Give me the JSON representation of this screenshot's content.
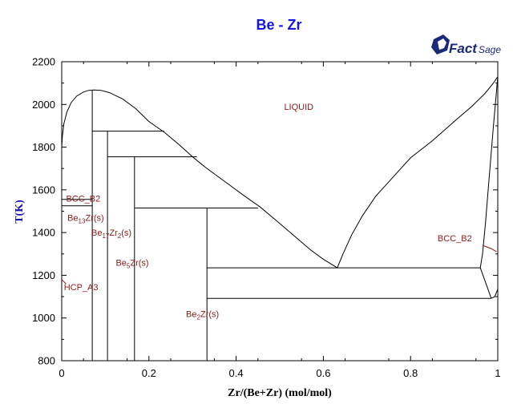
{
  "chart_data": {
    "type": "line",
    "title": "Be - Zr",
    "xlabel": "Zr/(Be+Zr) (mol/mol)",
    "ylabel": "T(K)",
    "xlim": [
      0,
      1
    ],
    "ylim": [
      800,
      2200
    ],
    "x_ticks": [
      0,
      0.2,
      0.4,
      0.6,
      0.8,
      1
    ],
    "x_tick_labels": [
      "0",
      "0.2",
      "0.4",
      "0.6",
      "0.8",
      "1"
    ],
    "y_ticks": [
      800,
      1000,
      1200,
      1400,
      1600,
      1800,
      2000,
      2200
    ],
    "y_tick_labels": [
      "800",
      "1000",
      "1200",
      "1400",
      "1600",
      "1800",
      "2000",
      "2200"
    ],
    "grid": false,
    "logo": {
      "main": "Fact",
      "sub": "Sage"
    },
    "phase_labels": [
      {
        "text": "LIQUID",
        "x": 0.51,
        "y": 1975,
        "sub": []
      },
      {
        "text": "BCC_B2",
        "x": 0.01,
        "y": 1545,
        "sub": []
      },
      {
        "text": "Be13Zr(s)",
        "x": 0.013,
        "y": 1455,
        "sub": [
          [
            2,
            4
          ]
        ]
      },
      {
        "text": "Be17Zr2(s)",
        "x": 0.068,
        "y": 1385,
        "sub": [
          [
            2,
            4
          ],
          [
            6,
            7
          ]
        ]
      },
      {
        "text": "Be5Zr(s)",
        "x": 0.124,
        "y": 1245,
        "sub": [
          [
            2,
            3
          ]
        ]
      },
      {
        "text": "HCP_A3",
        "x": 0.005,
        "y": 1130,
        "sub": []
      },
      {
        "text": "Be2Zr(s)",
        "x": 0.285,
        "y": 1005,
        "sub": [
          [
            2,
            3
          ]
        ]
      },
      {
        "text": "BCC_B2",
        "x": 0.862,
        "y": 1360,
        "sub": []
      }
    ],
    "series": [
      {
        "color": "#000000",
        "points": [
          [
            0.0,
            1800
          ],
          [
            0.0015,
            1850
          ],
          [
            0.005,
            1910
          ],
          [
            0.012,
            1965
          ],
          [
            0.022,
            2010
          ],
          [
            0.035,
            2040
          ],
          [
            0.05,
            2058
          ],
          [
            0.062,
            2066
          ],
          [
            0.074,
            2068
          ],
          [
            0.09,
            2066
          ],
          [
            0.11,
            2055
          ],
          [
            0.14,
            2025
          ],
          [
            0.17,
            1980
          ],
          [
            0.2,
            1920
          ],
          [
            0.235,
            1870
          ],
          [
            0.27,
            1810
          ],
          [
            0.3,
            1755
          ],
          [
            0.33,
            1705
          ],
          [
            0.36,
            1660
          ],
          [
            0.39,
            1615
          ],
          [
            0.42,
            1570
          ],
          [
            0.455,
            1520
          ],
          [
            0.49,
            1460
          ],
          [
            0.53,
            1390
          ],
          [
            0.57,
            1320
          ],
          [
            0.6,
            1275
          ],
          [
            0.632,
            1235
          ]
        ]
      },
      {
        "color": "#000000",
        "points": [
          [
            0.632,
            1235
          ],
          [
            0.645,
            1300
          ],
          [
            0.665,
            1390
          ],
          [
            0.69,
            1480
          ],
          [
            0.72,
            1570
          ],
          [
            0.76,
            1660
          ],
          [
            0.8,
            1750
          ],
          [
            0.85,
            1830
          ],
          [
            0.9,
            1920
          ],
          [
            0.94,
            1990
          ],
          [
            0.97,
            2050
          ],
          [
            0.99,
            2100
          ],
          [
            1.0,
            2130
          ]
        ]
      },
      {
        "color": "#000000",
        "points": [
          [
            1.0,
            2130
          ],
          [
            0.99,
            1900
          ],
          [
            0.98,
            1650
          ],
          [
            0.972,
            1450
          ],
          [
            0.965,
            1300
          ],
          [
            0.96,
            1235
          ]
        ]
      },
      {
        "color": "#000000",
        "points": [
          [
            0.96,
            1235
          ],
          [
            0.975,
            1150
          ],
          [
            0.985,
            1092
          ]
        ]
      },
      {
        "color": "#000000",
        "points": [
          [
            0.985,
            1092
          ],
          [
            0.993,
            1100
          ],
          [
            1.0,
            1135
          ]
        ]
      },
      {
        "color": "#000000",
        "points": [
          [
            0.0,
            1555
          ],
          [
            0.07,
            1555
          ]
        ]
      },
      {
        "color": "#000000",
        "points": [
          [
            0.0,
            1525
          ],
          [
            0.07,
            1525
          ]
        ]
      },
      {
        "color": "#000000",
        "points": [
          [
            0.07,
            800
          ],
          [
            0.07,
            2068
          ]
        ]
      },
      {
        "color": "#000000",
        "points": [
          [
            0.07,
            1875
          ],
          [
            0.235,
            1875
          ]
        ]
      },
      {
        "color": "#000000",
        "points": [
          [
            0.105,
            800
          ],
          [
            0.105,
            1875
          ]
        ]
      },
      {
        "color": "#000000",
        "points": [
          [
            0.105,
            1755
          ],
          [
            0.31,
            1755
          ]
        ]
      },
      {
        "color": "#000000",
        "points": [
          [
            0.167,
            800
          ],
          [
            0.167,
            1755
          ]
        ]
      },
      {
        "color": "#000000",
        "points": [
          [
            0.167,
            1515
          ],
          [
            0.45,
            1515
          ]
        ]
      },
      {
        "color": "#000000",
        "points": [
          [
            0.333,
            800
          ],
          [
            0.333,
            1515
          ]
        ]
      },
      {
        "color": "#000000",
        "points": [
          [
            0.333,
            1235
          ],
          [
            0.96,
            1235
          ]
        ]
      },
      {
        "color": "#000000",
        "points": [
          [
            0.333,
            1092
          ],
          [
            0.985,
            1092
          ]
        ]
      },
      {
        "color": "#8b1a1a",
        "points": [
          [
            0.0,
            1180
          ],
          [
            0.01,
            1160
          ]
        ]
      },
      {
        "color": "#8b1a1a",
        "points": [
          [
            0.965,
            1340
          ],
          [
            0.985,
            1325
          ],
          [
            0.997,
            1310
          ]
        ]
      }
    ]
  }
}
